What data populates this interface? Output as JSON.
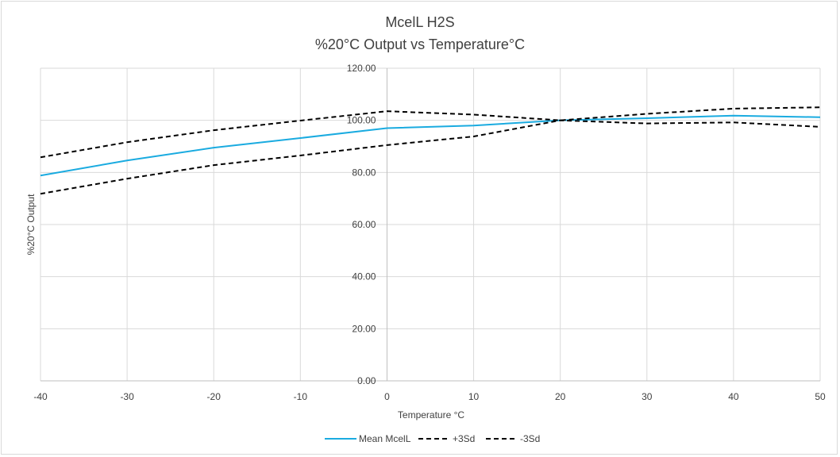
{
  "chart_data": {
    "type": "line",
    "title": "McelL H2S",
    "subtitle": "%20°C Output vs Temperature°C",
    "xlabel": "Temperature °C",
    "ylabel": "%20°C Output",
    "x": [
      -40,
      -30,
      -20,
      -10,
      0,
      10,
      20,
      30,
      40,
      50
    ],
    "xlim": [
      -40,
      50
    ],
    "ylim": [
      0,
      120
    ],
    "x_ticks": [
      "-40",
      "-30",
      "-20",
      "-10",
      "0",
      "10",
      "20",
      "30",
      "40",
      "50"
    ],
    "y_ticks": [
      "0.00",
      "20.00",
      "40.00",
      "60.00",
      "80.00",
      "100.00",
      "120.00"
    ],
    "grid": true,
    "legend_position": "bottom",
    "series": [
      {
        "name": "Mean McelL",
        "color": "#1aabe0",
        "dash": "solid",
        "values": [
          78.8,
          84.6,
          89.5,
          93.2,
          97.0,
          98.0,
          100.0,
          100.8,
          101.8,
          101.2
        ]
      },
      {
        "name": "+3Sd",
        "color": "#000000",
        "dash": "dashed",
        "values": [
          85.8,
          91.6,
          96.2,
          99.9,
          103.5,
          102.2,
          100.0,
          102.5,
          104.5,
          105.0
        ]
      },
      {
        "name": "-3Sd",
        "color": "#000000",
        "dash": "dashed",
        "values": [
          71.8,
          77.6,
          82.8,
          86.5,
          90.5,
          93.8,
          100.0,
          98.8,
          99.2,
          97.5
        ]
      }
    ]
  }
}
